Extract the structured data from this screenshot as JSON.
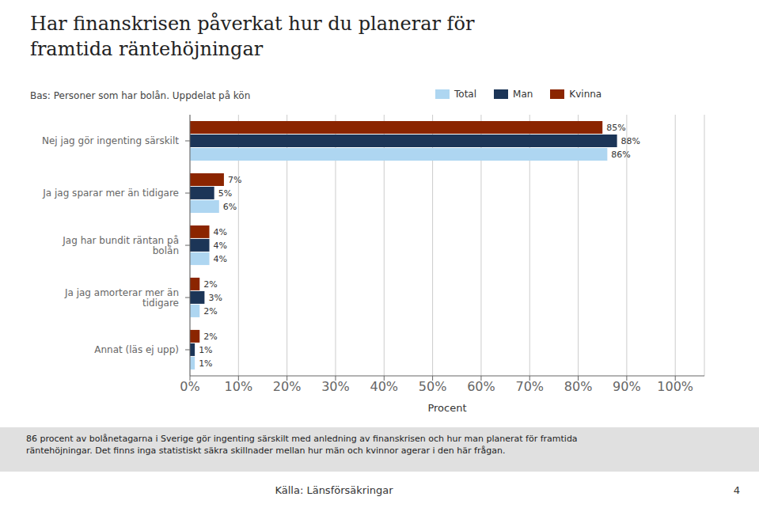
{
  "chart_data": {
    "type": "bar",
    "orientation": "horizontal",
    "title": "Har finanskrisen påverkat hur du planerar för\nframtida räntehöjningar",
    "subtitle": "Bas: Personer som har bolån. Uppdelat på kön",
    "categories": [
      "Nej jag gör ingenting särskilt",
      "Ja jag sparar mer än tidigare",
      "Jag har bundit räntan på\nbolån",
      "Ja jag amorterar mer än\ntidigare",
      "Annat (läs ej upp)"
    ],
    "series": [
      {
        "name": "Total",
        "color": "#aed6f1",
        "values": [
          86,
          6,
          4,
          2,
          1
        ],
        "value_labels": [
          "86%",
          "6%",
          "4%",
          "2%",
          "1%"
        ]
      },
      {
        "name": "Man",
        "color": "#1c3557",
        "values": [
          88,
          5,
          4,
          3,
          1
        ],
        "value_labels": [
          "88%",
          "5%",
          "4%",
          "3%",
          "1%"
        ]
      },
      {
        "name": "Kvinna",
        "color": "#8b2500",
        "values": [
          85,
          7,
          4,
          2,
          2
        ],
        "value_labels": [
          "85%",
          "7%",
          "4%",
          "2%",
          "2%"
        ]
      }
    ],
    "data_labels": true,
    "xlabel": "Procent",
    "xlim": [
      0,
      106
    ],
    "xticks": [
      {
        "value": 0,
        "label": "0%"
      },
      {
        "value": 10,
        "label": "10%"
      },
      {
        "value": 20,
        "label": "20%"
      },
      {
        "value": 30,
        "label": "30%"
      },
      {
        "value": 40,
        "label": "40%"
      },
      {
        "value": 50,
        "label": "50%"
      },
      {
        "value": 60,
        "label": "60%"
      },
      {
        "value": 70,
        "label": "70%"
      },
      {
        "value": 80,
        "label": "80%"
      },
      {
        "value": 90,
        "label": "90%"
      },
      {
        "value": 100,
        "label": "100%"
      }
    ],
    "grid": true,
    "annotations": [
      "86 procent av bolånetagarna i Sverige gör ingenting särskilt med anledning av finanskrisen och hur man planerat för framtida",
      "räntehöjningar.  Det finns inga statistiskt säkra skillnader mellan hur män och kvinnor agerar i den här frågan.",
      "Källa: Länsförsäkringar",
      "4"
    ]
  }
}
